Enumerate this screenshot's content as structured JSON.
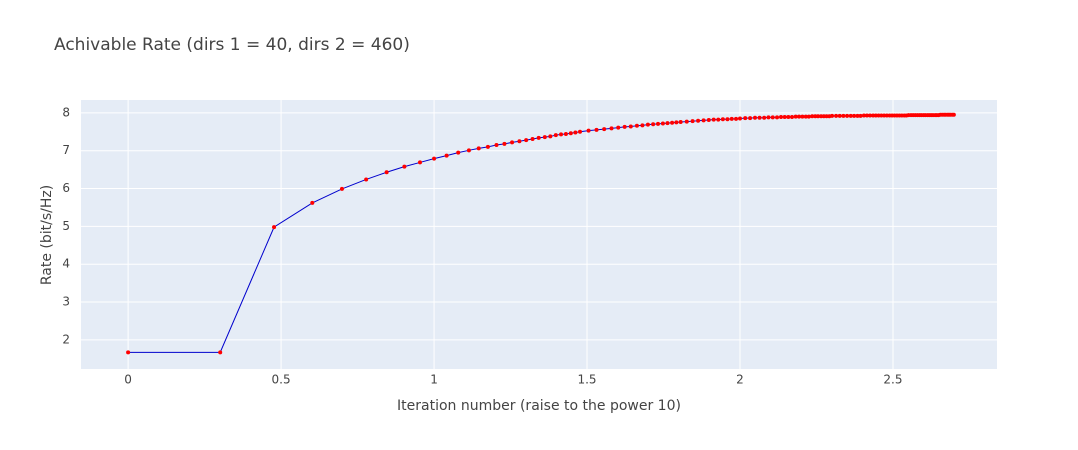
{
  "chart_data": {
    "type": "line",
    "title": "Achivable Rate (dirs 1 = 40, dirs 2 = 460)",
    "x_label": "Iteration number (raise to the power 10)",
    "y_label": "Rate (bit/s/Hz)",
    "xlim": [
      -0.154,
      2.84
    ],
    "ylim": [
      1.23,
      8.34
    ],
    "xticks": [
      0,
      0.5,
      1,
      1.5,
      2,
      2.5
    ],
    "yticks": [
      2,
      3,
      4,
      5,
      6,
      7,
      8
    ],
    "grid": true,
    "line_color": "#0000cd",
    "marker_color": "#ff0000",
    "x": [
      0,
      0.301,
      0.477,
      0.602,
      0.699,
      0.778,
      0.845,
      0.903,
      0.954,
      1,
      1.041,
      1.079,
      1.114,
      1.146,
      1.176,
      1.204,
      1.23,
      1.255,
      1.279,
      1.301,
      1.322,
      1.342,
      1.362,
      1.38,
      1.398,
      1.415,
      1.431,
      1.447,
      1.462,
      1.477,
      1.505,
      1.531,
      1.556,
      1.58,
      1.602,
      1.623,
      1.643,
      1.663,
      1.681,
      1.699,
      1.716,
      1.732,
      1.748,
      1.763,
      1.778,
      1.792,
      1.806,
      1.826,
      1.845,
      1.863,
      1.881,
      1.898,
      1.914,
      1.929,
      1.944,
      1.959,
      1.973,
      1.987,
      2,
      2.017,
      2.033,
      2.049,
      2.064,
      2.079,
      2.093,
      2.107,
      2.121,
      2.134,
      2.146,
      2.158,
      2.17,
      2.182,
      2.193,
      2.204,
      2.215,
      2.225,
      2.236,
      2.246,
      2.255,
      2.265,
      2.274,
      2.283,
      2.292,
      2.301,
      2.314,
      2.326,
      2.338,
      2.35,
      2.362,
      2.373,
      2.384,
      2.394,
      2.405,
      2.415,
      2.425,
      2.435,
      2.444,
      2.453,
      2.462,
      2.471,
      2.48,
      2.489,
      2.497,
      2.505,
      2.513,
      2.521,
      2.529,
      2.537,
      2.544,
      2.551,
      2.559,
      2.566,
      2.573,
      2.58,
      2.587,
      2.593,
      2.6,
      2.606,
      2.613,
      2.619,
      2.625,
      2.631,
      2.638,
      2.643,
      2.649,
      2.655,
      2.661,
      2.667,
      2.672,
      2.678,
      2.683,
      2.688,
      2.694,
      2.699
    ],
    "values": [
      1.67,
      1.67,
      4.98,
      5.62,
      5.99,
      6.24,
      6.43,
      6.58,
      6.69,
      6.79,
      6.87,
      6.95,
      7.01,
      7.06,
      7.1,
      7.15,
      7.18,
      7.22,
      7.25,
      7.28,
      7.31,
      7.34,
      7.36,
      7.38,
      7.41,
      7.43,
      7.44,
      7.46,
      7.48,
      7.5,
      7.53,
      7.55,
      7.57,
      7.59,
      7.61,
      7.63,
      7.64,
      7.66,
      7.67,
      7.69,
      7.7,
      7.71,
      7.72,
      7.73,
      7.74,
      7.75,
      7.76,
      7.77,
      7.78,
      7.79,
      7.8,
      7.81,
      7.82,
      7.82,
      7.83,
      7.83,
      7.84,
      7.84,
      7.85,
      7.86,
      7.86,
      7.87,
      7.87,
      7.87,
      7.88,
      7.88,
      7.88,
      7.89,
      7.89,
      7.89,
      7.89,
      7.9,
      7.9,
      7.9,
      7.9,
      7.9,
      7.91,
      7.91,
      7.91,
      7.91,
      7.91,
      7.91,
      7.91,
      7.92,
      7.92,
      7.92,
      7.92,
      7.92,
      7.92,
      7.92,
      7.92,
      7.92,
      7.93,
      7.93,
      7.93,
      7.93,
      7.93,
      7.93,
      7.93,
      7.93,
      7.93,
      7.93,
      7.93,
      7.93,
      7.93,
      7.93,
      7.93,
      7.93,
      7.93,
      7.94,
      7.94,
      7.94,
      7.94,
      7.94,
      7.94,
      7.94,
      7.94,
      7.94,
      7.94,
      7.94,
      7.94,
      7.94,
      7.94,
      7.94,
      7.94,
      7.95,
      7.95,
      7.95,
      7.95,
      7.95,
      7.95,
      7.95,
      7.95,
      7.95
    ]
  }
}
